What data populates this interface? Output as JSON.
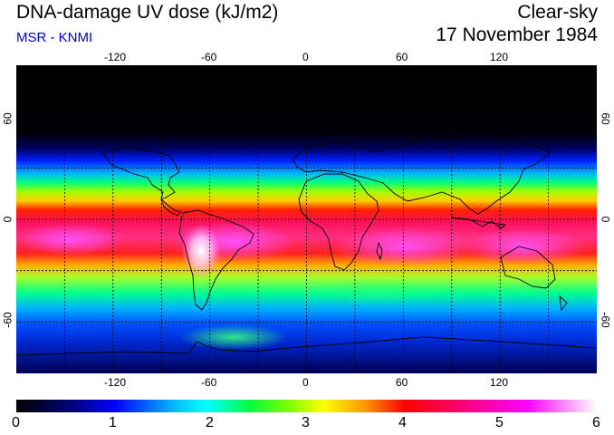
{
  "header": {
    "title": "DNA-damage UV dose (kJ/m2)",
    "source": "MSR - KNMI",
    "condition": "Clear-sky",
    "date": "17 November 1984"
  },
  "map": {
    "lon_range": [
      -180,
      180
    ],
    "lat_range": [
      -90,
      90
    ],
    "lon_ticks": [
      "-120",
      "-60",
      "0",
      "60",
      "120"
    ],
    "lat_ticks": [
      "60",
      "0",
      "-60"
    ],
    "gridlines": "dashed",
    "projection": "equirectangular"
  },
  "colorbar": {
    "min": 0,
    "max": 6,
    "labels": [
      "0",
      "1",
      "2",
      "3",
      "4",
      "5",
      "6"
    ],
    "colors": [
      "#000000",
      "#000080",
      "#0000ff",
      "#00c8ff",
      "#00ffff",
      "#00ff40",
      "#80ff00",
      "#ffff00",
      "#ff9900",
      "#ff0000",
      "#ff0060",
      "#ff00ff",
      "#ffffff"
    ]
  }
}
